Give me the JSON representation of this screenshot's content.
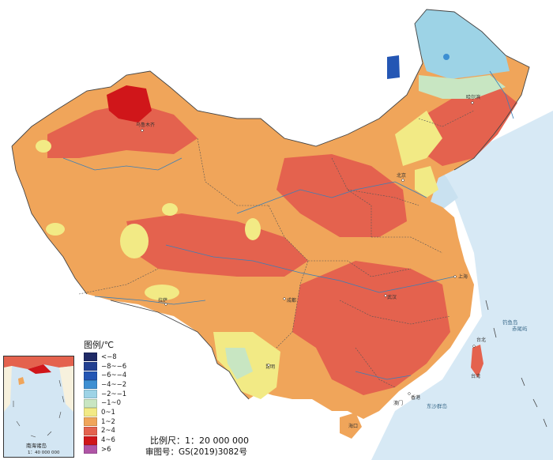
{
  "legend": {
    "title": "图例/℃",
    "items": [
      {
        "label": "<−8",
        "color": "#1f2a66"
      },
      {
        "label": "−8~−6",
        "color": "#223f91"
      },
      {
        "label": "−6~−4",
        "color": "#2456b4"
      },
      {
        "label": "−4~−2",
        "color": "#3d8fd2"
      },
      {
        "label": "−2~−1",
        "color": "#9dd3e6"
      },
      {
        "label": "−1~0",
        "color": "#c8e6c2"
      },
      {
        "label": "0~1",
        "color": "#f2ea85"
      },
      {
        "label": "1~2",
        "color": "#f0a55a"
      },
      {
        "label": "2~4",
        "color": "#e4624e"
      },
      {
        "label": "4~6",
        "color": "#d0161a"
      },
      {
        "label": ">6",
        "color": "#b055a6"
      }
    ]
  },
  "scale": "比例尺：1：20 000 000",
  "approval": "审图号：GS(2019)3082号",
  "inset": {
    "label": "南海诸岛",
    "scale": "1：40 000 000"
  },
  "map_labels": {
    "beijing": "北京",
    "hongkong": "香港",
    "macao": "澳门",
    "taiwan": "台湾",
    "haikou": "海口",
    "dongsha": "东沙群岛",
    "diaoyu": "钓鱼岛",
    "chiwei": "赤尾屿",
    "taibei": "台北",
    "urumqi": "乌鲁木齐",
    "harbin": "哈尔滨",
    "lhasa": "拉萨",
    "shanghai": "上海",
    "kunming": "昆明",
    "chengdu": "成都",
    "wuhan": "武汉"
  }
}
